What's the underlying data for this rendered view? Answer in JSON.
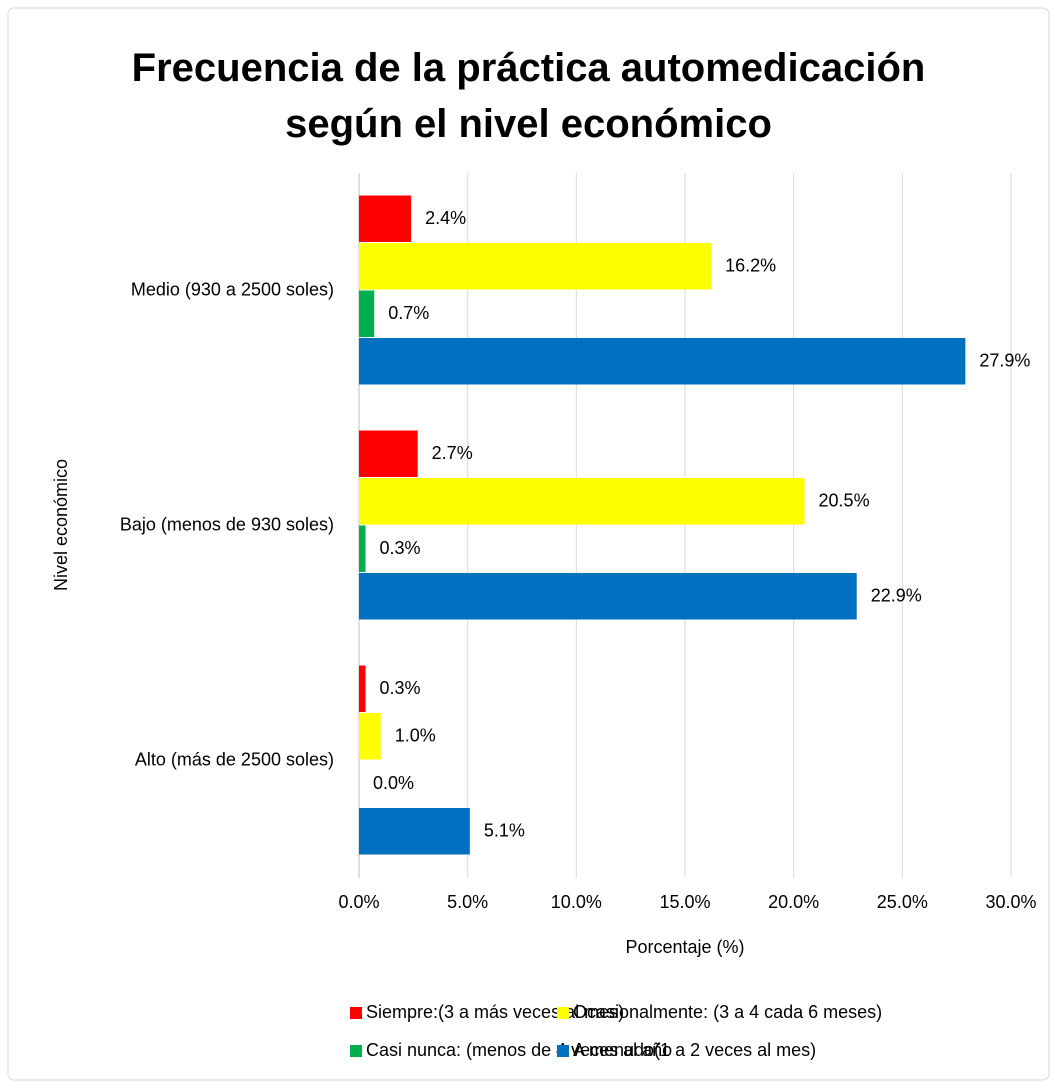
{
  "chart_data": {
    "type": "barh",
    "title": "Frecuencia de la práctica automedicación según el nivel económico",
    "x_label": "Porcentaje (%)",
    "y_label": "Nivel económico",
    "categories": [
      "Medio (930 a 2500 soles)",
      "Bajo (menos de 930 soles)",
      "Alto (más de 2500 soles)"
    ],
    "series": [
      {
        "name": "Siempre:(3 a más veces al mes)",
        "color": "#ff0000",
        "values": [
          2.4,
          2.7,
          0.3
        ],
        "value_labels": [
          "2.4%",
          "2.7%",
          "0.3%"
        ]
      },
      {
        "name": "Ocasionalmente: (3 a 4 cada 6 meses)",
        "color": "#ffff00",
        "values": [
          16.2,
          20.5,
          1.0
        ],
        "value_labels": [
          "16.2%",
          "20.5%",
          "1.0%"
        ]
      },
      {
        "name": "Casi nunca: (menos de 4 veces al año",
        "color": "#00b050",
        "values": [
          0.7,
          0.3,
          0.0
        ],
        "value_labels": [
          "0.7%",
          "0.3%",
          "0.0%"
        ]
      },
      {
        "name": "A menudo(1 a 2 veces al mes)",
        "color": "#0070c0",
        "values": [
          27.9,
          22.9,
          5.1
        ],
        "value_labels": [
          "27.9%",
          "22.9%",
          "5.1%"
        ]
      }
    ],
    "xlim": [
      0,
      30
    ],
    "xticks": [
      {
        "value": 0,
        "label": "0.0%"
      },
      {
        "value": 5,
        "label": "5.0%"
      },
      {
        "value": 10,
        "label": "10.0%"
      },
      {
        "value": 15,
        "label": "15.0%"
      },
      {
        "value": 20,
        "label": "20.0%"
      },
      {
        "value": 25,
        "label": "25.0%"
      },
      {
        "value": 30,
        "label": "30.0%"
      }
    ],
    "grid": true,
    "legend": "bottom"
  }
}
